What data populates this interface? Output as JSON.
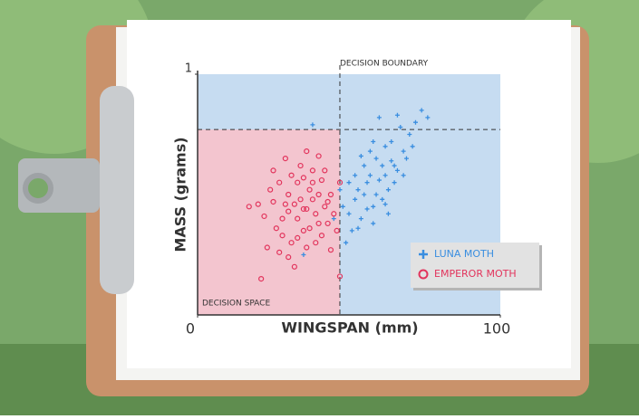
{
  "chart_data": {
    "type": "scatter",
    "xlabel": "WINGSPAN (mm)",
    "ylabel": "MASS (grams)",
    "annotations": [
      "DECISION BOUNDARY",
      "DECISION SPACE"
    ],
    "xlim": [
      0,
      100
    ],
    "xticks": [
      0,
      100
    ],
    "ylim": [
      0,
      1
    ],
    "yticks": [
      1
    ],
    "boundary": {
      "x": 47,
      "y": 0.77
    },
    "region_colors": {
      "outside": "#c6dcf1",
      "inside": "#f3c5cf"
    },
    "legend": "lower right",
    "series": [
      {
        "name": "LUNA MOTH",
        "color": "#3a8ee0",
        "marker": "plus",
        "x": [
          60,
          55,
          65,
          58,
          62,
          52,
          68,
          57,
          63,
          50,
          70,
          66,
          54,
          59,
          61,
          72,
          56,
          64,
          53,
          67,
          48,
          51,
          69,
          58,
          62,
          55,
          74,
          60,
          57,
          65,
          49,
          52,
          63,
          71,
          59,
          66,
          54,
          47,
          61,
          68,
          56,
          64,
          53,
          45,
          50,
          38,
          35,
          76,
          58,
          62
        ],
        "y": [
          0.56,
          0.5,
          0.62,
          0.45,
          0.7,
          0.48,
          0.68,
          0.58,
          0.52,
          0.42,
          0.75,
          0.6,
          0.4,
          0.65,
          0.48,
          0.8,
          0.55,
          0.72,
          0.52,
          0.78,
          0.45,
          0.35,
          0.65,
          0.38,
          0.58,
          0.62,
          0.85,
          0.82,
          0.68,
          0.55,
          0.3,
          0.58,
          0.42,
          0.7,
          0.5,
          0.83,
          0.66,
          0.52,
          0.62,
          0.58,
          0.44,
          0.64,
          0.36,
          0.4,
          0.55,
          0.79,
          0.25,
          0.82,
          0.72,
          0.46
        ]
      },
      {
        "name": "EMPEROR MOTH",
        "color": "#e2345c",
        "marker": "circle",
        "x": [
          36,
          30,
          40,
          25,
          33,
          38,
          28,
          42,
          35,
          31,
          27,
          44,
          37,
          34,
          29,
          39,
          41,
          32,
          26,
          23,
          20,
          17,
          36,
          43,
          45,
          30,
          38,
          35,
          40,
          33,
          28,
          24,
          22,
          46,
          47,
          39,
          34,
          31,
          37,
          42,
          29,
          36,
          32,
          21,
          44,
          27,
          40,
          35,
          38,
          30,
          47,
          25,
          43,
          33,
          41
        ],
        "y": [
          0.44,
          0.5,
          0.38,
          0.47,
          0.55,
          0.6,
          0.4,
          0.45,
          0.35,
          0.3,
          0.55,
          0.5,
          0.52,
          0.62,
          0.65,
          0.42,
          0.33,
          0.46,
          0.36,
          0.28,
          0.46,
          0.45,
          0.28,
          0.38,
          0.42,
          0.24,
          0.48,
          0.57,
          0.66,
          0.4,
          0.33,
          0.52,
          0.41,
          0.35,
          0.55,
          0.3,
          0.48,
          0.58,
          0.36,
          0.6,
          0.46,
          0.68,
          0.2,
          0.15,
          0.27,
          0.26,
          0.5,
          0.44,
          0.55,
          0.43,
          0.16,
          0.6,
          0.47,
          0.32,
          0.56
        ]
      }
    ]
  }
}
